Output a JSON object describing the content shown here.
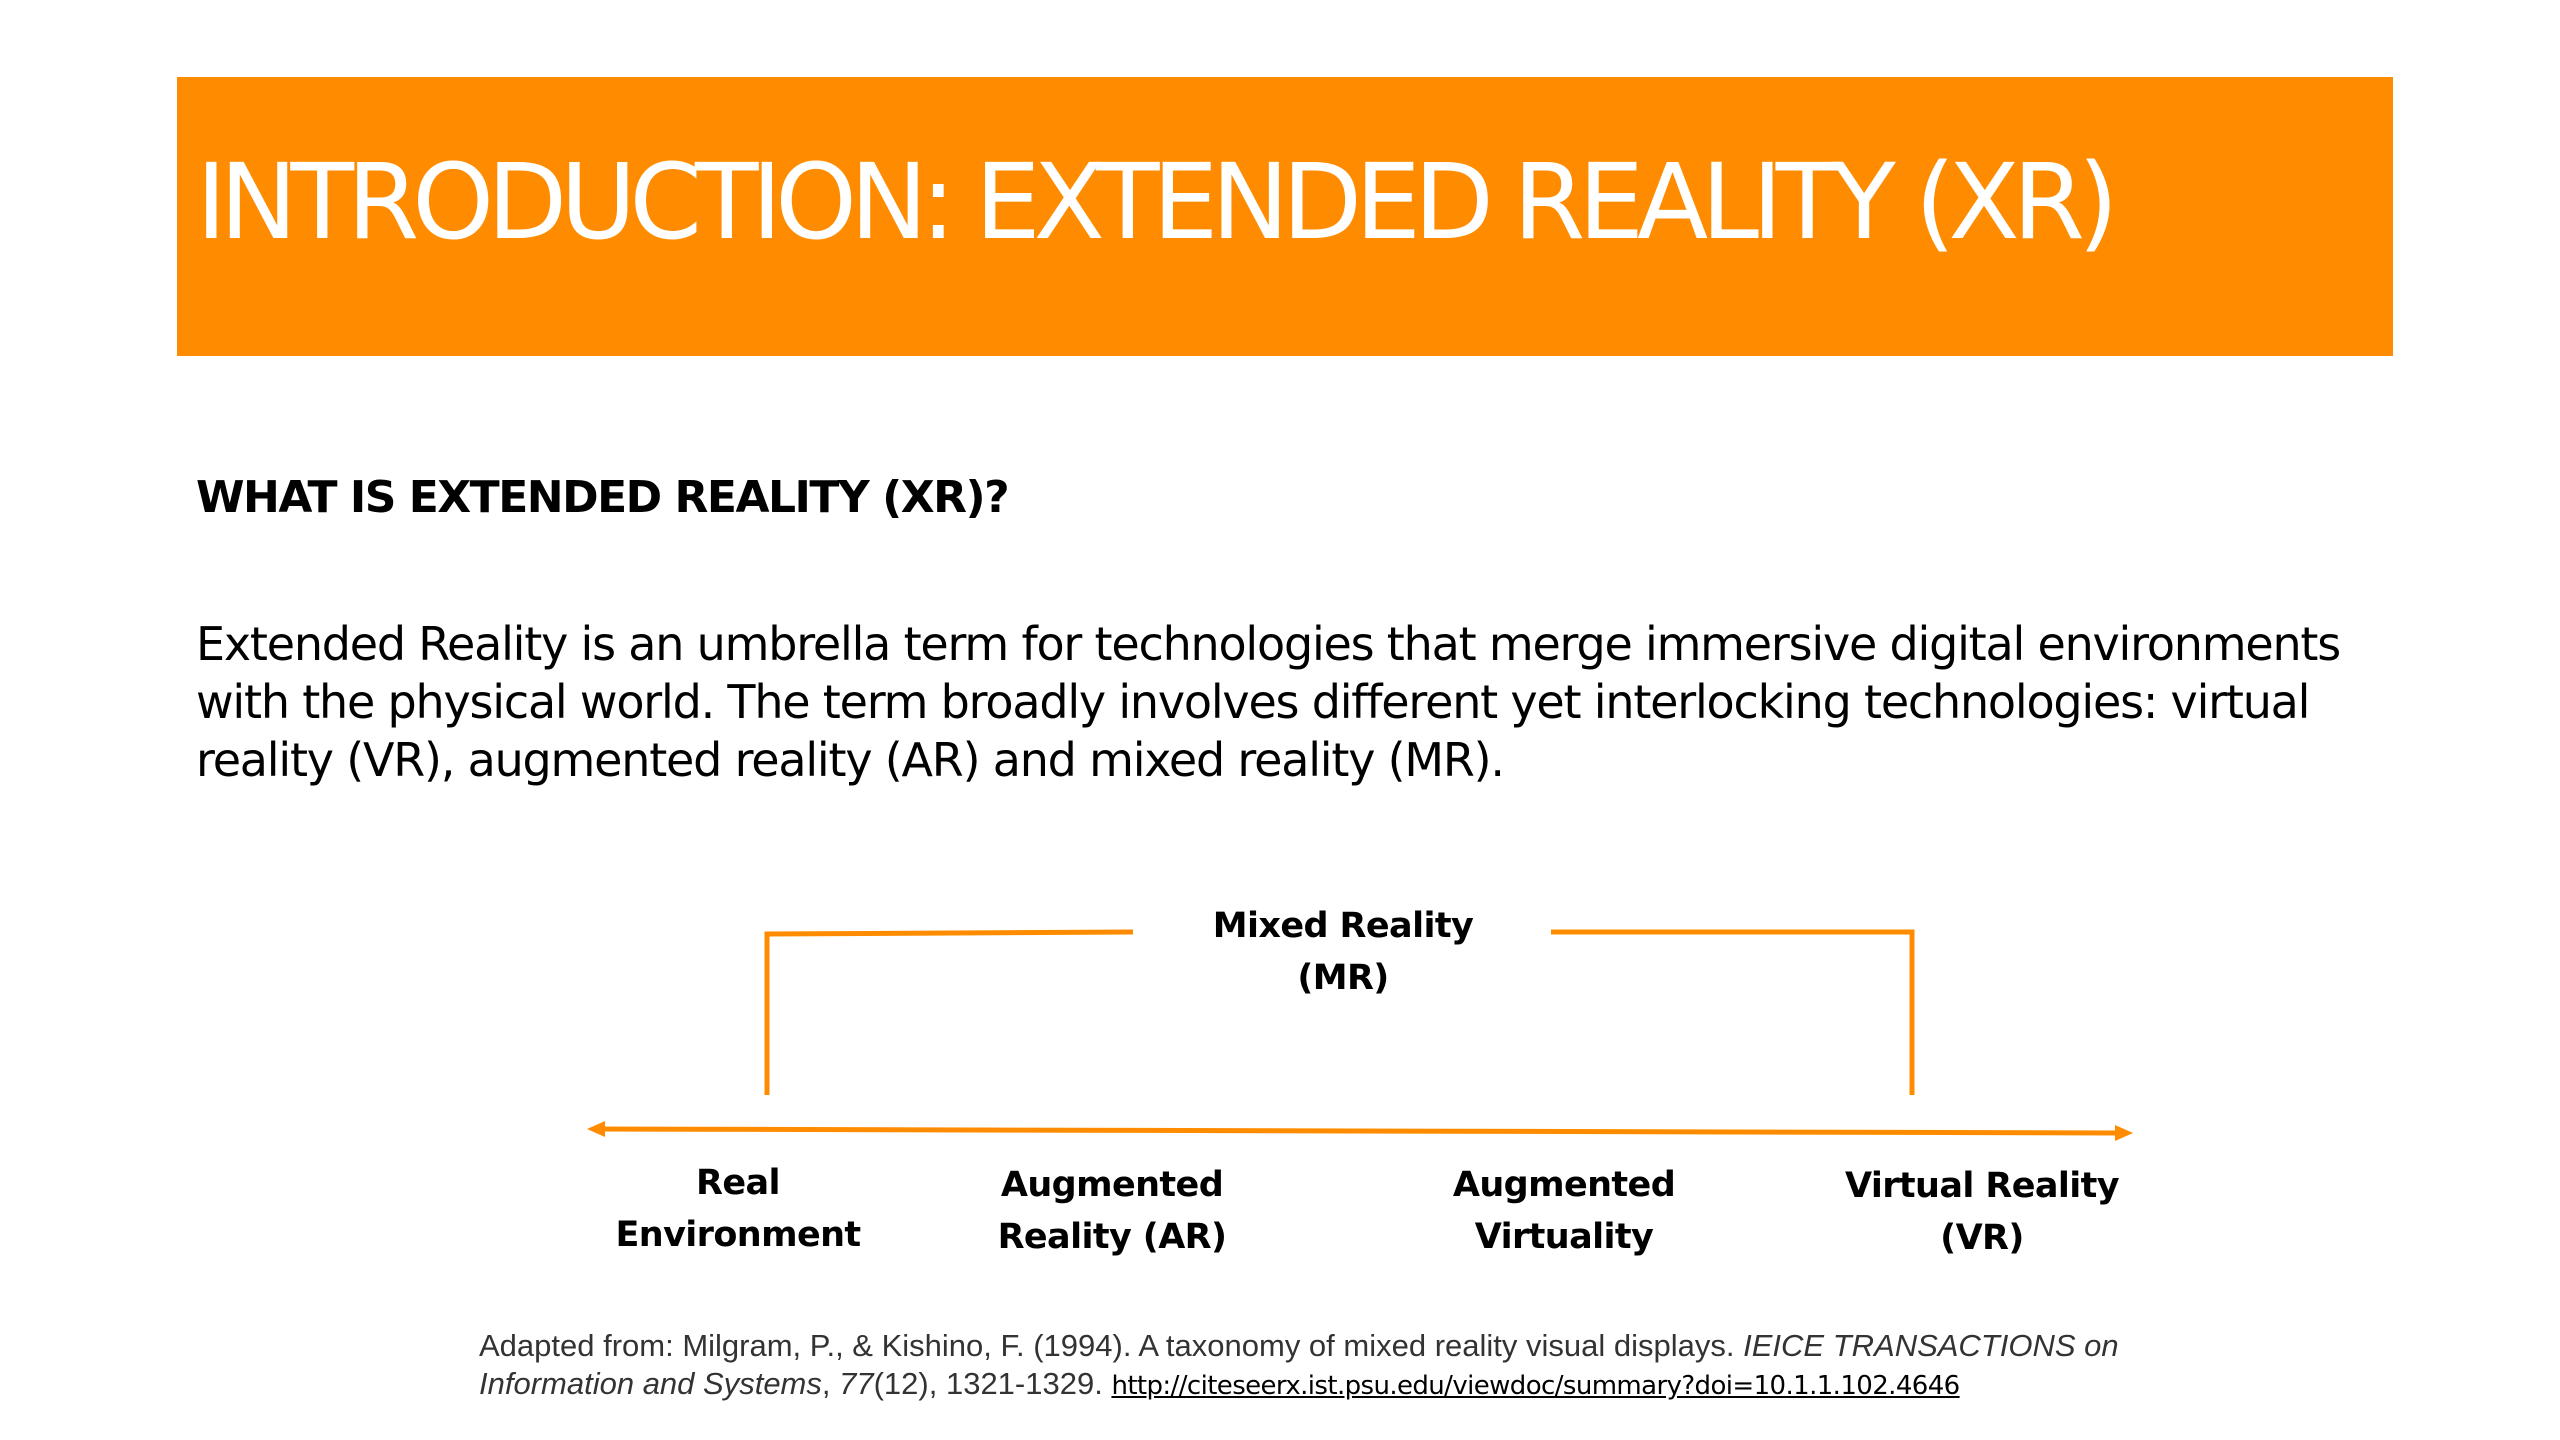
{
  "slide": {
    "title": "INTRODUCTION: EXTENDED REALITY (XR)",
    "heading": "WHAT IS EXTENDED REALITY (XR)?",
    "body_lines": [
      "Extended Reality is an umbrella term for technologies that merge immersive digital environments",
      "with the physical world. The term broadly involves different yet interlocking technologies: virtual",
      "reality (VR), augmented reality (AR) and mixed reality (MR)."
    ]
  },
  "diagram": {
    "bracket_label": [
      "Mixed Reality",
      "(MR)"
    ],
    "continuum": [
      {
        "lines": [
          "Real",
          "Environment"
        ]
      },
      {
        "lines": [
          "Augmented",
          "Reality (AR)"
        ]
      },
      {
        "lines": [
          "Augmented",
          "Virtuality"
        ]
      },
      {
        "lines": [
          "Virtual Reality",
          "(VR)"
        ]
      }
    ]
  },
  "citation": {
    "prefix": "Adapted from: Milgram, P., & Kishino, F. (1994). A taxonomy of mixed reality visual displays. ",
    "journal_line1": "IEICE TRANSACTIONS on",
    "journal_line2": "Information and Systems",
    "sep1": ", ",
    "volume": "77",
    "issue_pages": "(12), 1321-1329. ",
    "url": "http://citeseerx.ist.psu.edu/viewdoc/summary?doi=10.1.1.102.4646"
  },
  "colors": {
    "accent": "#FF8C00",
    "title_text": "#FFFFFF",
    "body_text": "#000000",
    "citation_text": "#333333"
  }
}
